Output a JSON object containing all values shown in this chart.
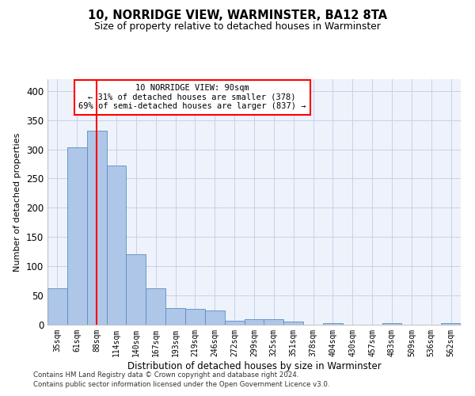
{
  "title1": "10, NORRIDGE VIEW, WARMINSTER, BA12 8TA",
  "title2": "Size of property relative to detached houses in Warminster",
  "xlabel": "Distribution of detached houses by size in Warminster",
  "ylabel": "Number of detached properties",
  "categories": [
    "35sqm",
    "61sqm",
    "88sqm",
    "114sqm",
    "140sqm",
    "167sqm",
    "193sqm",
    "219sqm",
    "246sqm",
    "272sqm",
    "299sqm",
    "325sqm",
    "351sqm",
    "378sqm",
    "404sqm",
    "430sqm",
    "457sqm",
    "483sqm",
    "509sqm",
    "536sqm",
    "562sqm"
  ],
  "values": [
    62,
    303,
    332,
    272,
    120,
    63,
    29,
    27,
    25,
    7,
    10,
    10,
    5,
    0,
    3,
    0,
    0,
    3,
    0,
    0,
    3
  ],
  "bar_color": "#aec6e8",
  "bar_edge_color": "#5a8fc0",
  "vline_x": 2,
  "vline_color": "red",
  "annotation_text": "10 NORRIDGE VIEW: 90sqm\n← 31% of detached houses are smaller (378)\n69% of semi-detached houses are larger (837) →",
  "annotation_box_color": "white",
  "annotation_box_edge": "red",
  "footnote1": "Contains HM Land Registry data © Crown copyright and database right 2024.",
  "footnote2": "Contains public sector information licensed under the Open Government Licence v3.0.",
  "background_color": "#eef2fb",
  "grid_color": "#c8d0e8",
  "ylim": [
    0,
    420
  ],
  "yticks": [
    0,
    50,
    100,
    150,
    200,
    250,
    300,
    350,
    400
  ]
}
